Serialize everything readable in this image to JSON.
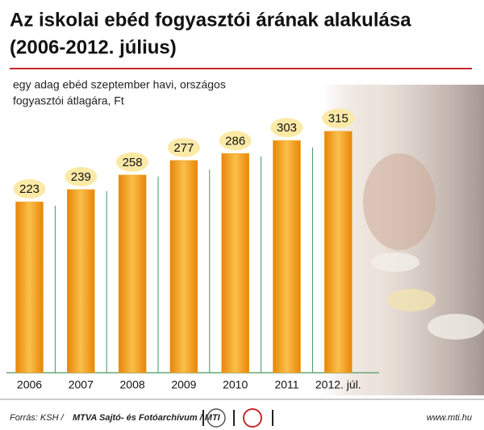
{
  "chart_data": {
    "type": "bar",
    "title": [
      "Az iskolai ebéd fogyasztói árának alakulása",
      "(2006-2012. július)"
    ],
    "subtitle": [
      "egy adag ebéd szeptember havi, országos",
      "fogyasztói átlagára,  Ft"
    ],
    "categories": [
      "2006",
      "2007",
      "2008",
      "2009",
      "2010",
      "2011",
      "2012. júl."
    ],
    "values": [
      223,
      239,
      258,
      277,
      286,
      303,
      315
    ],
    "color": "#f2a21e",
    "source_prefix": "Forrás: KSH /",
    "source": "MTVA Sajtó- és Fotóarchívum / MTI",
    "website": "www.mti.hu"
  }
}
